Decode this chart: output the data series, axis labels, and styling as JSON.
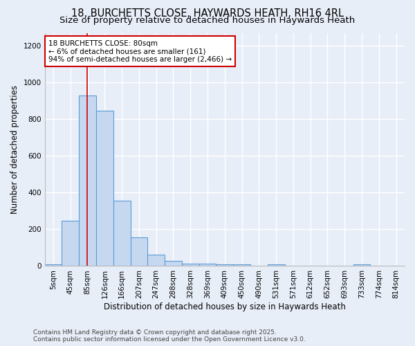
{
  "title_line1": "18, BURCHETTS CLOSE, HAYWARDS HEATH, RH16 4RL",
  "title_line2": "Size of property relative to detached houses in Haywards Heath",
  "xlabel": "Distribution of detached houses by size in Haywards Heath",
  "ylabel": "Number of detached properties",
  "bar_color": "#c5d8f0",
  "bar_edge_color": "#5b9bd5",
  "categories": [
    "5sqm",
    "45sqm",
    "85sqm",
    "126sqm",
    "166sqm",
    "207sqm",
    "247sqm",
    "288sqm",
    "328sqm",
    "369sqm",
    "409sqm",
    "450sqm",
    "490sqm",
    "531sqm",
    "571sqm",
    "612sqm",
    "652sqm",
    "693sqm",
    "733sqm",
    "774sqm",
    "814sqm"
  ],
  "values": [
    8,
    248,
    930,
    845,
    355,
    158,
    62,
    28,
    13,
    12,
    8,
    8,
    0,
    8,
    0,
    0,
    0,
    0,
    8,
    0,
    0
  ],
  "ylim": [
    0,
    1270
  ],
  "yticks": [
    0,
    200,
    400,
    600,
    800,
    1000,
    1200
  ],
  "red_line_x": 1.97,
  "annotation_text": "18 BURCHETTS CLOSE: 80sqm\n← 6% of detached houses are smaller (161)\n94% of semi-detached houses are larger (2,466) →",
  "annotation_box_color": "#ffffff",
  "annotation_box_edge_color": "#cc0000",
  "bg_color": "#e8eef8",
  "plot_bg_color": "#e8eef8",
  "grid_color": "#ffffff",
  "footer_text": "Contains HM Land Registry data © Crown copyright and database right 2025.\nContains public sector information licensed under the Open Government Licence v3.0.",
  "title_fontsize": 10.5,
  "subtitle_fontsize": 9.5,
  "axis_label_fontsize": 8.5,
  "tick_fontsize": 7.5,
  "annotation_fontsize": 7.5,
  "footer_fontsize": 6.5
}
